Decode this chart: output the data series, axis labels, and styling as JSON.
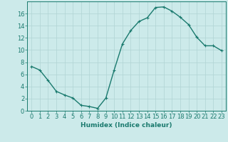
{
  "x": [
    0,
    1,
    2,
    3,
    4,
    5,
    6,
    7,
    8,
    9,
    10,
    11,
    12,
    13,
    14,
    15,
    16,
    17,
    18,
    19,
    20,
    21,
    22,
    23
  ],
  "y": [
    7.3,
    6.7,
    5.0,
    3.2,
    2.6,
    2.1,
    0.9,
    0.7,
    0.4,
    2.1,
    6.7,
    11.0,
    13.2,
    14.7,
    15.3,
    17.0,
    17.1,
    16.4,
    15.4,
    14.2,
    12.1,
    10.7,
    10.7,
    9.9
  ],
  "line_color": "#1a7a6e",
  "marker": "+",
  "marker_size": 3,
  "bg_color": "#cceaea",
  "grid_color": "#b0d4d4",
  "xlabel": "Humidex (Indice chaleur)",
  "xlim": [
    -0.5,
    23.5
  ],
  "ylim": [
    0,
    18
  ],
  "xticks": [
    0,
    1,
    2,
    3,
    4,
    5,
    6,
    7,
    8,
    9,
    10,
    11,
    12,
    13,
    14,
    15,
    16,
    17,
    18,
    19,
    20,
    21,
    22,
    23
  ],
  "yticks": [
    0,
    2,
    4,
    6,
    8,
    10,
    12,
    14,
    16
  ],
  "axis_fontsize": 6.5,
  "tick_fontsize": 6.0,
  "line_width": 1.0
}
